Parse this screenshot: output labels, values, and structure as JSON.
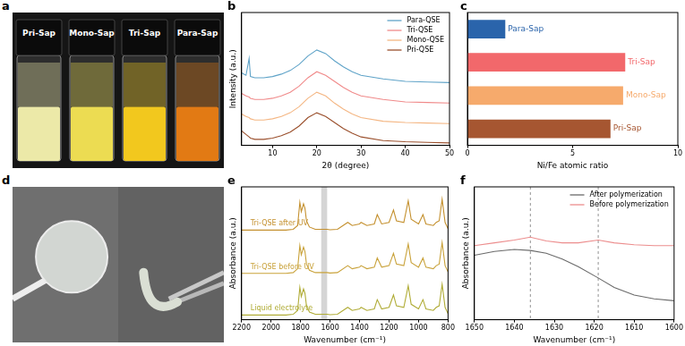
{
  "photos": [
    {
      "panel_label": "a",
      "labels": [
        "Pri-Sap",
        "Mono-Sap",
        "Tri-Sap",
        "Para-Sap"
      ],
      "colors": [
        "#ece9a8",
        "#ecdc52",
        "#f2c81e",
        "#e27a14"
      ]
    },
    {
      "panel_label": "d"
    }
  ],
  "chart_data": [
    {
      "panel_label": "b",
      "type": "line",
      "x_label": "2θ (degree)",
      "y_label": "Intensity (a.u.)",
      "x": [
        3,
        4,
        4.7,
        5,
        6,
        8,
        10,
        12,
        14,
        16,
        18,
        20,
        22,
        24,
        26,
        28,
        30,
        35,
        40,
        45,
        50
      ],
      "series": [
        {
          "name": "Para-QSE",
          "color": "#5fa3c8",
          "values": [
            6.0,
            5.8,
            7.2,
            5.7,
            5.6,
            5.6,
            5.7,
            5.9,
            6.2,
            6.7,
            7.4,
            7.9,
            7.6,
            7.0,
            6.5,
            6.1,
            5.8,
            5.5,
            5.3,
            5.25,
            5.2
          ]
        },
        {
          "name": "Tri-QSE",
          "color": "#f08a8a",
          "values": [
            4.3,
            4.1,
            4.0,
            3.9,
            3.8,
            3.8,
            3.9,
            4.1,
            4.4,
            4.9,
            5.6,
            6.1,
            5.8,
            5.3,
            4.8,
            4.4,
            4.1,
            3.8,
            3.6,
            3.55,
            3.5
          ]
        },
        {
          "name": "Mono-QSE",
          "color": "#f4b683",
          "values": [
            2.6,
            2.4,
            2.3,
            2.2,
            2.1,
            2.1,
            2.2,
            2.4,
            2.7,
            3.2,
            3.9,
            4.4,
            4.1,
            3.5,
            3.0,
            2.6,
            2.3,
            2.0,
            1.9,
            1.85,
            1.8
          ]
        },
        {
          "name": "Pri-QSE",
          "color": "#9a4f2c",
          "values": [
            1.2,
            0.9,
            0.7,
            0.6,
            0.5,
            0.5,
            0.6,
            0.8,
            1.1,
            1.6,
            2.3,
            2.7,
            2.4,
            1.9,
            1.4,
            1.0,
            0.7,
            0.4,
            0.3,
            0.25,
            0.2
          ]
        }
      ],
      "xlim": [
        3,
        50
      ],
      "xticks": [
        10,
        20,
        30,
        40,
        50
      ],
      "ylim": [
        0,
        11
      ],
      "tick_labels": "x",
      "grid": false,
      "legend": "upper right"
    },
    {
      "panel_label": "c",
      "type": "bar",
      "orientation": "horizontal",
      "x_label": "Ni/Fe atomic ratio",
      "categories": [
        "Para-Sap",
        "Tri-Sap",
        "Mono-Sap",
        "Pri-Sap"
      ],
      "values": [
        1.8,
        7.5,
        7.4,
        6.8
      ],
      "colors": [
        "#2a64ab",
        "#f2686b",
        "#f6aa6c",
        "#a65631"
      ],
      "xlim": [
        0,
        10
      ],
      "xticks": [
        0,
        5,
        10
      ],
      "tick_labels": "x",
      "grid": false
    },
    {
      "panel_label": "e",
      "type": "line",
      "x_label": "Wavenumber (cm⁻¹)",
      "y_label": "Absorbance (a.u.)",
      "x": [
        2200,
        2100,
        2000,
        1900,
        1850,
        1820,
        1805,
        1795,
        1780,
        1770,
        1760,
        1740,
        1700,
        1650,
        1620,
        1600,
        1550,
        1480,
        1450,
        1400,
        1390,
        1350,
        1300,
        1280,
        1250,
        1200,
        1170,
        1150,
        1100,
        1070,
        1050,
        1000,
        970,
        950,
        900,
        880,
        860,
        840,
        820,
        800
      ],
      "series": [
        {
          "name": "Tri-QSE after UV",
          "color": "#c4902e",
          "values": [
            5.8,
            5.8,
            5.8,
            5.8,
            5.85,
            6.1,
            7.6,
            7.0,
            7.5,
            7.2,
            6.4,
            6.0,
            5.85,
            5.85,
            5.85,
            5.82,
            5.85,
            6.3,
            6.1,
            6.2,
            6.3,
            6.1,
            6.2,
            6.8,
            6.2,
            6.3,
            7.1,
            6.4,
            6.3,
            7.7,
            6.5,
            6.2,
            6.8,
            6.2,
            6.1,
            6.3,
            6.4,
            7.8,
            6.3,
            5.9
          ]
        },
        {
          "name": "Tri-QSE before UV",
          "color": "#c9a23a",
          "values": [
            3.0,
            3.0,
            3.0,
            3.0,
            3.05,
            3.3,
            4.8,
            4.2,
            4.7,
            4.4,
            3.6,
            3.2,
            3.05,
            3.05,
            3.05,
            3.02,
            3.05,
            3.5,
            3.3,
            3.4,
            3.5,
            3.3,
            3.4,
            4.0,
            3.4,
            3.5,
            4.3,
            3.6,
            3.5,
            4.9,
            3.7,
            3.4,
            4.0,
            3.4,
            3.3,
            3.5,
            3.6,
            5.0,
            3.5,
            3.1
          ]
        },
        {
          "name": "Liquid electrolyte",
          "color": "#b0ac36",
          "values": [
            0.3,
            0.3,
            0.3,
            0.3,
            0.35,
            0.6,
            2.1,
            1.5,
            2.0,
            1.7,
            0.9,
            0.5,
            0.35,
            0.35,
            0.35,
            0.32,
            0.35,
            0.8,
            0.6,
            0.7,
            0.8,
            0.6,
            0.7,
            1.3,
            0.7,
            0.8,
            1.6,
            0.9,
            0.8,
            2.2,
            1.0,
            0.7,
            1.3,
            0.7,
            0.6,
            0.8,
            0.9,
            2.3,
            0.8,
            0.4
          ]
        }
      ],
      "shaded_range": [
        1660,
        1620
      ],
      "xlim": [
        2200,
        800
      ],
      "xticks": [
        2200,
        2000,
        1800,
        1600,
        1400,
        1200,
        1000,
        800
      ],
      "ylim": [
        0,
        8.6
      ],
      "tick_labels": "x",
      "grid": false
    },
    {
      "panel_label": "f",
      "type": "line",
      "x_label": "Wavenumber (cm⁻¹)",
      "y_label": "Absorbance (a.u.)",
      "x": [
        1650,
        1645,
        1640,
        1636,
        1632,
        1628,
        1624,
        1619,
        1615,
        1610,
        1605,
        1600
      ],
      "series": [
        {
          "name": "After polymerization",
          "color": "#6a6a6a",
          "values": [
            6.4,
            6.6,
            6.7,
            6.65,
            6.5,
            6.2,
            5.8,
            5.2,
            4.7,
            4.3,
            4.1,
            4.0
          ]
        },
        {
          "name": "Before polymerization",
          "color": "#ec8d8d",
          "values": [
            6.9,
            7.05,
            7.2,
            7.35,
            7.15,
            7.05,
            7.05,
            7.2,
            7.05,
            6.95,
            6.9,
            6.9
          ]
        }
      ],
      "reference_lines": [
        1636,
        1619
      ],
      "xlim": [
        1650,
        1600
      ],
      "xticks": [
        1650,
        1640,
        1630,
        1620,
        1610,
        1600
      ],
      "ylim": [
        3,
        10
      ],
      "tick_labels": "x",
      "grid": false,
      "legend": "upper right"
    }
  ]
}
